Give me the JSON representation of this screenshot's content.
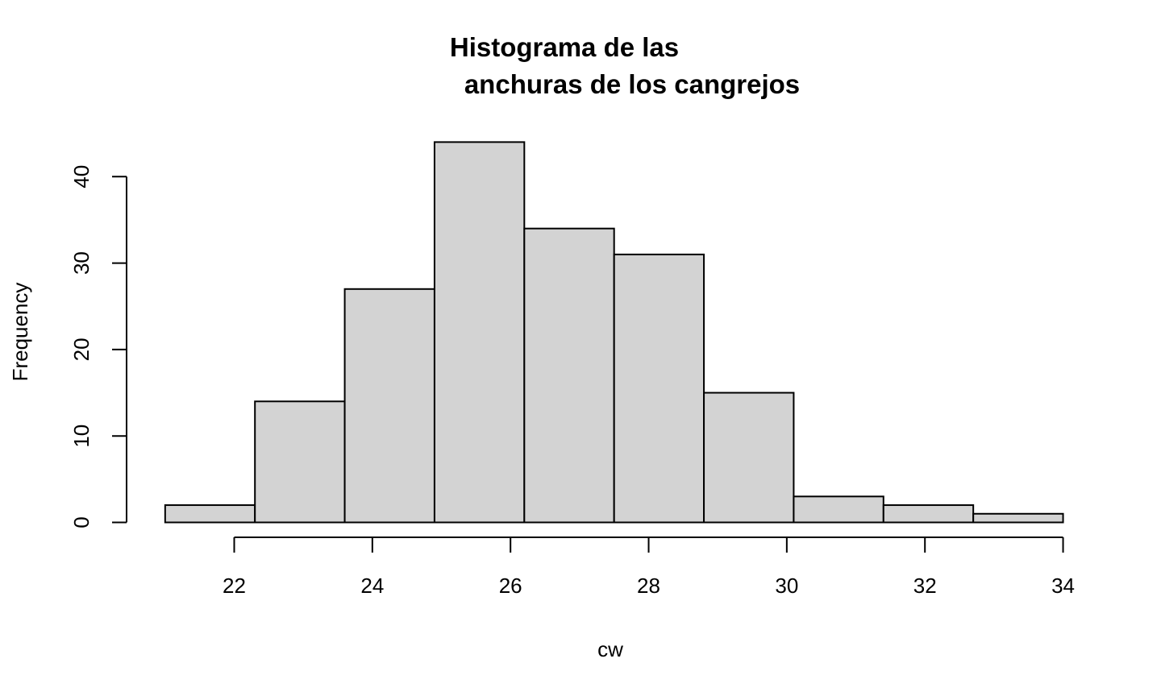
{
  "chart_data": {
    "type": "bar",
    "title_lines": [
      "Histograma de las",
      "anchuras de los cangrejos"
    ],
    "xlabel": "cw",
    "ylabel": "Frequency",
    "bins": [
      {
        "start": 21.0,
        "end": 22.3,
        "count": 2
      },
      {
        "start": 22.3,
        "end": 23.6,
        "count": 14
      },
      {
        "start": 23.6,
        "end": 24.9,
        "count": 27
      },
      {
        "start": 24.9,
        "end": 26.2,
        "count": 44
      },
      {
        "start": 26.2,
        "end": 27.5,
        "count": 34
      },
      {
        "start": 27.5,
        "end": 28.8,
        "count": 31
      },
      {
        "start": 28.8,
        "end": 30.1,
        "count": 15
      },
      {
        "start": 30.1,
        "end": 31.4,
        "count": 3
      },
      {
        "start": 31.4,
        "end": 32.7,
        "count": 2
      },
      {
        "start": 32.7,
        "end": 34.0,
        "count": 1
      }
    ],
    "x_ticks": [
      22,
      24,
      26,
      28,
      30,
      32,
      34
    ],
    "y_ticks": [
      0,
      10,
      20,
      30,
      40
    ],
    "x_tick_labels": [
      "22",
      "24",
      "26",
      "28",
      "30",
      "32",
      "34"
    ],
    "y_tick_labels": [
      "0",
      "10",
      "20",
      "30",
      "40"
    ],
    "bar_fill": "#d3d3d3",
    "bar_stroke": "#000000",
    "grid": false,
    "legend": "none"
  }
}
